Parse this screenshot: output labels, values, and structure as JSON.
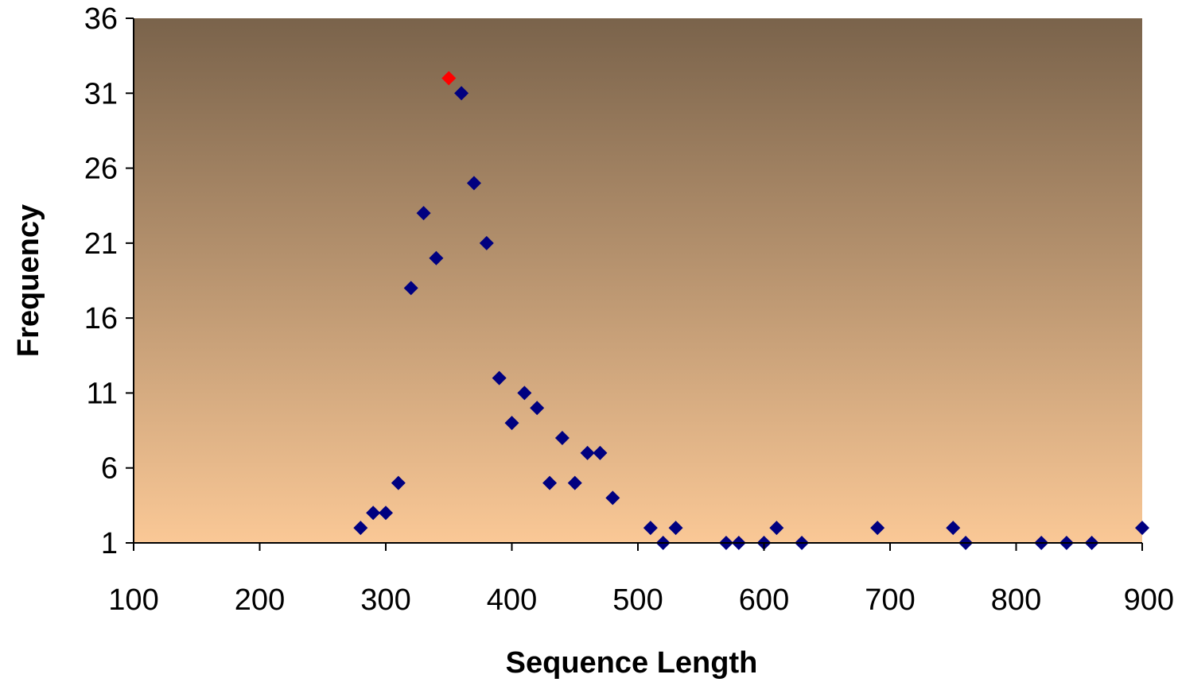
{
  "chart_data": {
    "type": "scatter",
    "xlabel": "Sequence Length",
    "ylabel": "Frequency",
    "xlim": [
      100,
      900
    ],
    "ylim": [
      1,
      36
    ],
    "xticks": [
      100,
      200,
      300,
      400,
      500,
      600,
      700,
      800,
      900
    ],
    "yticks": [
      1,
      6,
      11,
      16,
      21,
      26,
      31,
      36
    ],
    "grid": false,
    "legend": "none",
    "colors": {
      "marker": "#000080",
      "highlight": "#FF0000",
      "background_top": "#7A634B",
      "background_bottom": "#FAC896"
    },
    "series": [
      {
        "points": [
          {
            "x": 280,
            "y": 2
          },
          {
            "x": 290,
            "y": 3
          },
          {
            "x": 300,
            "y": 3
          },
          {
            "x": 310,
            "y": 5
          },
          {
            "x": 320,
            "y": 18
          },
          {
            "x": 330,
            "y": 23
          },
          {
            "x": 340,
            "y": 20
          },
          {
            "x": 350,
            "y": 32,
            "highlight": true
          },
          {
            "x": 360,
            "y": 31
          },
          {
            "x": 370,
            "y": 25
          },
          {
            "x": 380,
            "y": 21
          },
          {
            "x": 390,
            "y": 12
          },
          {
            "x": 400,
            "y": 9
          },
          {
            "x": 410,
            "y": 11
          },
          {
            "x": 420,
            "y": 10
          },
          {
            "x": 430,
            "y": 5
          },
          {
            "x": 440,
            "y": 8
          },
          {
            "x": 450,
            "y": 5
          },
          {
            "x": 460,
            "y": 7
          },
          {
            "x": 470,
            "y": 7
          },
          {
            "x": 480,
            "y": 4
          },
          {
            "x": 510,
            "y": 2
          },
          {
            "x": 520,
            "y": 1
          },
          {
            "x": 530,
            "y": 2
          },
          {
            "x": 570,
            "y": 1
          },
          {
            "x": 580,
            "y": 1
          },
          {
            "x": 600,
            "y": 1
          },
          {
            "x": 610,
            "y": 2
          },
          {
            "x": 630,
            "y": 1
          },
          {
            "x": 690,
            "y": 2
          },
          {
            "x": 750,
            "y": 2
          },
          {
            "x": 760,
            "y": 1
          },
          {
            "x": 820,
            "y": 1
          },
          {
            "x": 840,
            "y": 1
          },
          {
            "x": 860,
            "y": 1
          },
          {
            "x": 900,
            "y": 2
          }
        ]
      }
    ]
  }
}
